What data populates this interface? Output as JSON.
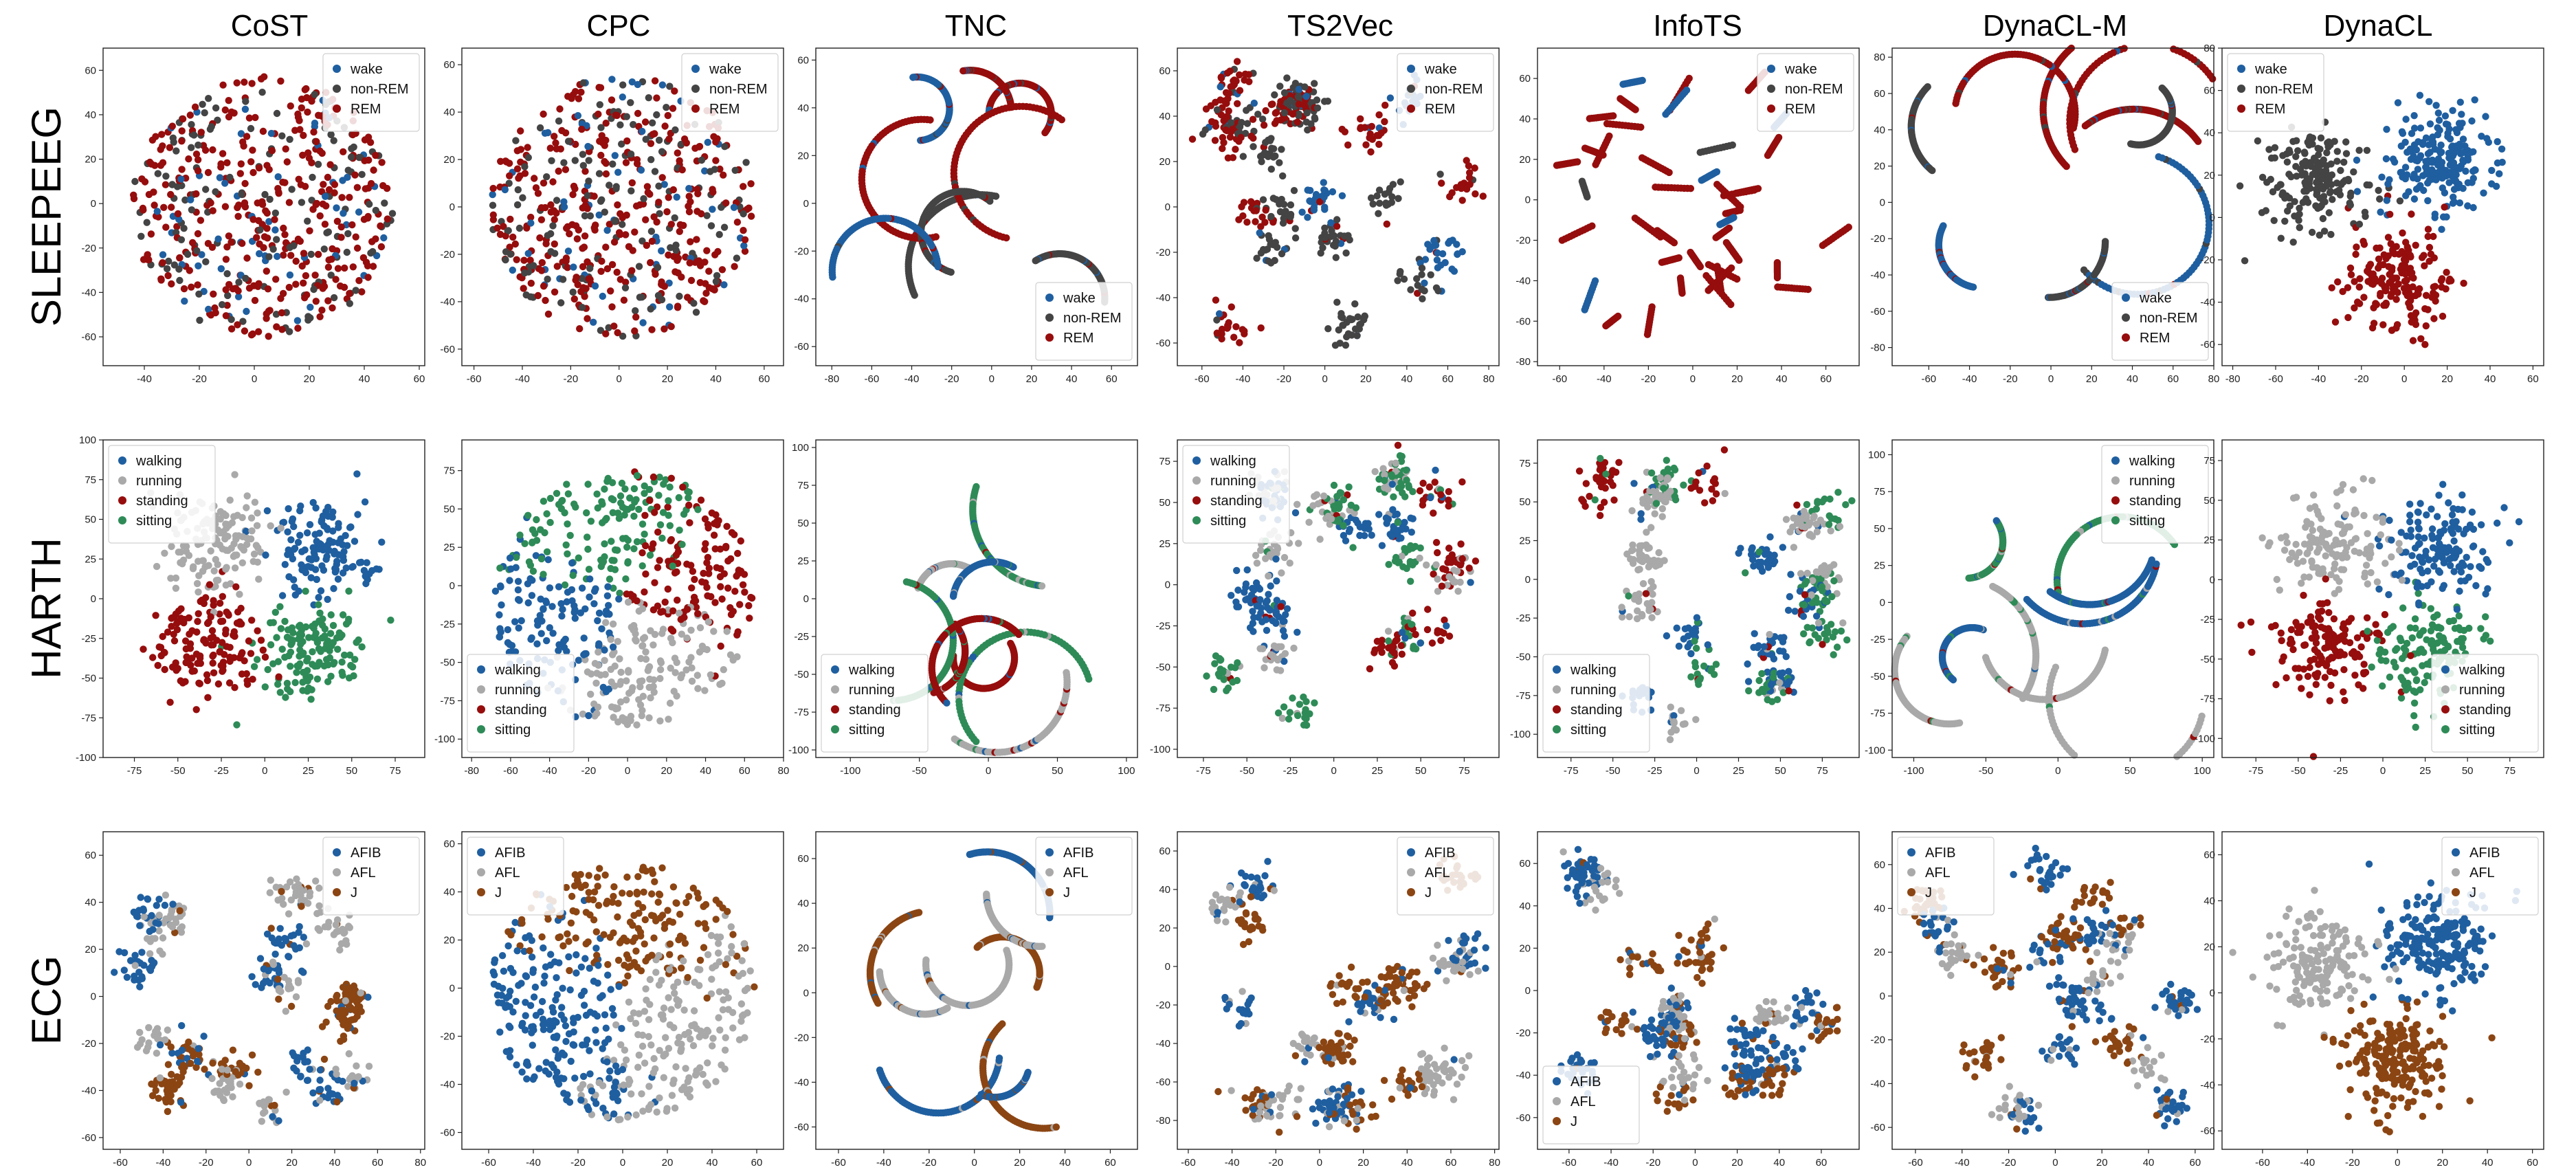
{
  "figure": {
    "column_titles": [
      "CoST",
      "CPC",
      "TNC",
      "TS2Vec",
      "InfoTS",
      "DynaCL-M",
      "DynaCL"
    ],
    "row_titles": [
      "SLEEPEEG",
      "HARTH",
      "ECG"
    ]
  },
  "colors": {
    "wake": "#1f5fa0",
    "non-REM": "#444444",
    "REM": "#960d0d",
    "walking": "#1f5fa0",
    "running": "#a9a9a9",
    "standing": "#960d0d",
    "sitting": "#2e8b57",
    "AFIB": "#1f5fa0",
    "AFL": "#a9a9a9",
    "J": "#8b4513"
  },
  "chart_data": [
    {
      "type": "scatter",
      "title": "CoST",
      "row": "SLEEPEEG",
      "legend": [
        "wake",
        "non-REM",
        "REM"
      ],
      "legend_position": "upper right",
      "xlim": [
        -55,
        62
      ],
      "ylim": [
        -73,
        70
      ],
      "xticks": [
        -40,
        -20,
        0,
        20,
        40,
        60
      ],
      "yticks": [
        -60,
        -40,
        -20,
        0,
        20,
        40,
        60
      ],
      "pattern": "blob"
    },
    {
      "type": "scatter",
      "title": "CPC",
      "row": "SLEEPEEG",
      "legend": [
        "wake",
        "non-REM",
        "REM"
      ],
      "legend_position": "upper right",
      "xlim": [
        -65,
        68
      ],
      "ylim": [
        -67,
        67
      ],
      "xticks": [
        -60,
        -40,
        -20,
        0,
        20,
        40,
        60
      ],
      "yticks": [
        -60,
        -40,
        -20,
        0,
        20,
        40,
        60
      ],
      "pattern": "blob"
    },
    {
      "type": "scatter",
      "title": "TNC",
      "row": "SLEEPEEG",
      "legend": [
        "wake",
        "non-REM",
        "REM"
      ],
      "legend_position": "lower right",
      "xlim": [
        -88,
        73
      ],
      "ylim": [
        -68,
        65
      ],
      "xticks": [
        -80,
        -60,
        -40,
        -20,
        0,
        20,
        40,
        60
      ],
      "yticks": [
        -60,
        -40,
        -20,
        0,
        20,
        40,
        60
      ],
      "pattern": "curves"
    },
    {
      "type": "scatter",
      "title": "TS2Vec",
      "row": "SLEEPEEG",
      "legend": [
        "wake",
        "non-REM",
        "REM"
      ],
      "legend_position": "upper right",
      "xlim": [
        -72,
        85
      ],
      "ylim": [
        -70,
        70
      ],
      "xticks": [
        -60,
        -40,
        -20,
        0,
        20,
        40,
        60,
        80
      ],
      "yticks": [
        -60,
        -40,
        -20,
        0,
        20,
        40,
        60
      ],
      "pattern": "clusters"
    },
    {
      "type": "scatter",
      "title": "InfoTS",
      "row": "SLEEPEEG",
      "legend": [
        "wake",
        "non-REM",
        "REM"
      ],
      "legend_position": "upper right",
      "xlim": [
        -70,
        75
      ],
      "ylim": [
        -82,
        75
      ],
      "xticks": [
        -60,
        -40,
        -20,
        0,
        20,
        40,
        60
      ],
      "yticks": [
        -80,
        -60,
        -40,
        -20,
        0,
        20,
        40,
        60
      ],
      "pattern": "strands"
    },
    {
      "type": "scatter",
      "title": "DynaCL-M",
      "row": "SLEEPEEG",
      "legend": [
        "wake",
        "non-REM",
        "REM"
      ],
      "legend_position": "lower right",
      "xlim": [
        -78,
        80
      ],
      "ylim": [
        -90,
        85
      ],
      "xticks": [
        -60,
        -40,
        -20,
        0,
        20,
        40,
        60,
        80
      ],
      "yticks": [
        -80,
        -60,
        -40,
        -20,
        0,
        20,
        40,
        60,
        80
      ],
      "pattern": "curves"
    },
    {
      "type": "scatter",
      "title": "DynaCL",
      "row": "SLEEPEEG",
      "legend": [
        "wake",
        "non-REM",
        "REM"
      ],
      "legend_position": "upper left",
      "xlim": [
        -85,
        65
      ],
      "ylim": [
        -70,
        80
      ],
      "xticks": [
        -80,
        -60,
        -40,
        -20,
        0,
        20,
        40,
        60
      ],
      "yticks": [
        -60,
        -40,
        -20,
        0,
        20,
        40,
        60,
        80
      ],
      "pattern": "separated"
    },
    {
      "type": "scatter",
      "title": "CoST",
      "row": "HARTH",
      "legend": [
        "walking",
        "running",
        "standing",
        "sitting"
      ],
      "legend_position": "upper left",
      "xlim": [
        -93,
        92
      ],
      "ylim": [
        -100,
        100
      ],
      "xticks": [
        -75,
        -50,
        -25,
        0,
        25,
        50,
        75
      ],
      "yticks": [
        -100,
        -75,
        -50,
        -25,
        0,
        25,
        50,
        75,
        100
      ],
      "pattern": "separated"
    },
    {
      "type": "scatter",
      "title": "CPC",
      "row": "HARTH",
      "legend": [
        "walking",
        "running",
        "standing",
        "sitting"
      ],
      "legend_position": "lower left",
      "xlim": [
        -85,
        80
      ],
      "ylim": [
        -112,
        95
      ],
      "xticks": [
        -80,
        -60,
        -40,
        -20,
        0,
        20,
        40,
        60,
        80
      ],
      "yticks": [
        -100,
        -75,
        -50,
        -25,
        0,
        25,
        50,
        75
      ],
      "pattern": "blob"
    },
    {
      "type": "scatter",
      "title": "TNC",
      "row": "HARTH",
      "legend": [
        "walking",
        "running",
        "standing",
        "sitting"
      ],
      "legend_position": "lower left",
      "xlim": [
        -125,
        108
      ],
      "ylim": [
        -105,
        105
      ],
      "xticks": [
        -100,
        -50,
        0,
        50,
        100
      ],
      "yticks": [
        -100,
        -75,
        -50,
        -25,
        0,
        25,
        50,
        75,
        100
      ],
      "pattern": "curves"
    },
    {
      "type": "scatter",
      "title": "TS2Vec",
      "row": "HARTH",
      "legend": [
        "walking",
        "running",
        "standing",
        "sitting"
      ],
      "legend_position": "upper left",
      "xlim": [
        -90,
        95
      ],
      "ylim": [
        -105,
        88
      ],
      "xticks": [
        -75,
        -50,
        -25,
        0,
        25,
        50,
        75
      ],
      "yticks": [
        -100,
        -75,
        -50,
        -25,
        0,
        25,
        50,
        75
      ],
      "pattern": "clusters"
    },
    {
      "type": "scatter",
      "title": "InfoTS",
      "row": "HARTH",
      "legend": [
        "walking",
        "running",
        "standing",
        "sitting"
      ],
      "legend_position": "lower left",
      "xlim": [
        -95,
        97
      ],
      "ylim": [
        -115,
        90
      ],
      "xticks": [
        -75,
        -50,
        -25,
        0,
        25,
        50,
        75
      ],
      "yticks": [
        -100,
        -75,
        -50,
        -25,
        0,
        25,
        50,
        75
      ],
      "pattern": "clusters"
    },
    {
      "type": "scatter",
      "title": "DynaCL-M",
      "row": "HARTH",
      "legend": [
        "walking",
        "running",
        "standing",
        "sitting"
      ],
      "legend_position": "upper right",
      "xlim": [
        -115,
        108
      ],
      "ylim": [
        -105,
        110
      ],
      "xticks": [
        -100,
        -50,
        0,
        50,
        100
      ],
      "yticks": [
        -100,
        -75,
        -50,
        -25,
        0,
        25,
        50,
        75,
        100
      ],
      "pattern": "curves"
    },
    {
      "type": "scatter",
      "title": "DynaCL",
      "row": "HARTH",
      "legend": [
        "walking",
        "running",
        "standing",
        "sitting"
      ],
      "legend_position": "lower right",
      "xlim": [
        -95,
        95
      ],
      "ylim": [
        -112,
        88
      ],
      "xticks": [
        -75,
        -50,
        -25,
        0,
        25,
        50,
        75
      ],
      "yticks": [
        -100,
        -75,
        -50,
        -25,
        0,
        25,
        50,
        75
      ],
      "pattern": "separated"
    },
    {
      "type": "scatter",
      "title": "CoST",
      "row": "ECG",
      "legend": [
        "AFIB",
        "AFL",
        "J"
      ],
      "legend_position": "upper right",
      "xlim": [
        -68,
        82
      ],
      "ylim": [
        -65,
        70
      ],
      "xticks": [
        -60,
        -40,
        -20,
        0,
        20,
        40,
        60,
        80
      ],
      "yticks": [
        -60,
        -40,
        -20,
        0,
        20,
        40,
        60
      ],
      "pattern": "clusters"
    },
    {
      "type": "scatter",
      "title": "CPC",
      "row": "ECG",
      "legend": [
        "AFIB",
        "AFL",
        "J"
      ],
      "legend_position": "upper left",
      "xlim": [
        -72,
        72
      ],
      "ylim": [
        -67,
        65
      ],
      "xticks": [
        -60,
        -40,
        -20,
        0,
        20,
        40,
        60
      ],
      "yticks": [
        -60,
        -40,
        -20,
        0,
        20,
        40,
        60
      ],
      "pattern": "blob"
    },
    {
      "type": "scatter",
      "title": "TNC",
      "row": "ECG",
      "legend": [
        "AFIB",
        "AFL",
        "J"
      ],
      "legend_position": "upper right",
      "xlim": [
        -70,
        72
      ],
      "ylim": [
        -70,
        72
      ],
      "xticks": [
        -60,
        -40,
        -20,
        0,
        20,
        40,
        60
      ],
      "yticks": [
        -60,
        -40,
        -20,
        0,
        20,
        40,
        60
      ],
      "pattern": "curves"
    },
    {
      "type": "scatter",
      "title": "TS2Vec",
      "row": "ECG",
      "legend": [
        "AFIB",
        "AFL",
        "J"
      ],
      "legend_position": "upper right",
      "xlim": [
        -65,
        82
      ],
      "ylim": [
        -95,
        70
      ],
      "xticks": [
        -60,
        -40,
        -20,
        0,
        20,
        40,
        60,
        80
      ],
      "yticks": [
        -80,
        -60,
        -40,
        -20,
        0,
        20,
        40,
        60
      ],
      "pattern": "clusters"
    },
    {
      "type": "scatter",
      "title": "InfoTS",
      "row": "ECG",
      "legend": [
        "AFIB",
        "AFL",
        "J"
      ],
      "legend_position": "lower left",
      "xlim": [
        -75,
        78
      ],
      "ylim": [
        -75,
        75
      ],
      "xticks": [
        -60,
        -40,
        -20,
        0,
        20,
        40,
        60
      ],
      "yticks": [
        -60,
        -40,
        -20,
        0,
        20,
        40,
        60
      ],
      "pattern": "clusters"
    },
    {
      "type": "scatter",
      "title": "DynaCL-M",
      "row": "ECG",
      "legend": [
        "AFIB",
        "AFL",
        "J"
      ],
      "legend_position": "upper left",
      "xlim": [
        -70,
        68
      ],
      "ylim": [
        -70,
        75
      ],
      "xticks": [
        -60,
        -40,
        -20,
        0,
        20,
        40,
        60
      ],
      "yticks": [
        -60,
        -40,
        -20,
        0,
        20,
        40,
        60
      ],
      "pattern": "clusters"
    },
    {
      "type": "scatter",
      "title": "DynaCL",
      "row": "ECG",
      "legend": [
        "AFIB",
        "AFL",
        "J"
      ],
      "legend_position": "upper right",
      "xlim": [
        -78,
        65
      ],
      "ylim": [
        -68,
        70
      ],
      "xticks": [
        -60,
        -40,
        -20,
        0,
        20,
        40,
        60
      ],
      "yticks": [
        -60,
        -40,
        -20,
        0,
        20,
        40,
        60
      ],
      "pattern": "separated"
    }
  ]
}
